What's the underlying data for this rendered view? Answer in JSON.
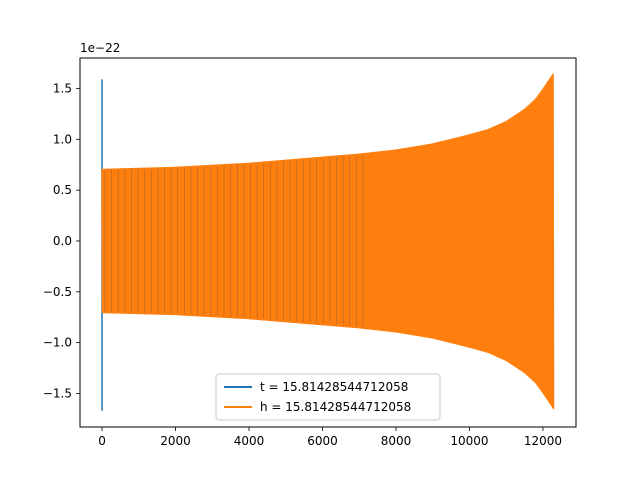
{
  "chart_data": {
    "type": "line",
    "offset_text": "1e−22",
    "xlim": [
      -600,
      12900
    ],
    "ylim": [
      -1.83,
      1.8
    ],
    "xticks": [
      0,
      2000,
      4000,
      6000,
      8000,
      10000,
      12000
    ],
    "xtick_labels": [
      "0",
      "2000",
      "4000",
      "6000",
      "8000",
      "10000",
      "12000"
    ],
    "yticks": [
      -1.5,
      -1.0,
      -0.5,
      0.0,
      0.5,
      1.0,
      1.5
    ],
    "ytick_labels": [
      "−1.5",
      "−1.0",
      "−0.5",
      "0.0",
      "0.5",
      "1.0",
      "1.5"
    ],
    "legend_position": "lower-center",
    "grid": false,
    "series": [
      {
        "name": "t = 15.81428544712058",
        "color": "#1f77b4",
        "x": [
          0,
          0,
          0,
          0,
          0
        ],
        "y": [
          0.0,
          1.59,
          -1.67,
          0.7,
          -0.5
        ]
      },
      {
        "name": "h = 15.81428544712058",
        "color": "#ff7f0e",
        "envelope": {
          "x": [
            0,
            1000,
            2000,
            3000,
            4000,
            5000,
            6000,
            7000,
            8000,
            9000,
            10000,
            10500,
            11000,
            11500,
            11800,
            12000,
            12150,
            12300
          ],
          "upper": [
            0.71,
            0.72,
            0.73,
            0.75,
            0.77,
            0.8,
            0.83,
            0.86,
            0.9,
            0.96,
            1.05,
            1.1,
            1.18,
            1.3,
            1.4,
            1.5,
            1.58,
            1.66
          ],
          "lower": [
            -0.71,
            -0.72,
            -0.73,
            -0.75,
            -0.77,
            -0.8,
            -0.83,
            -0.86,
            -0.9,
            -0.96,
            -1.05,
            -1.1,
            -1.18,
            -1.3,
            -1.4,
            -1.5,
            -1.58,
            -1.66
          ]
        }
      }
    ]
  }
}
